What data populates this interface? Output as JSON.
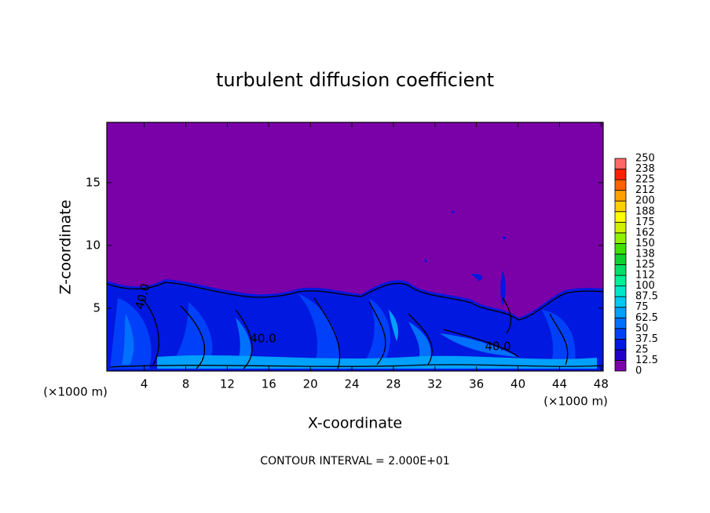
{
  "chart_data": {
    "type": "contour",
    "title": "turbulent diffusion coefficient",
    "x_label": "X-coordinate",
    "y_label": "Z-coordinate",
    "x_unit": "(×1000 m)",
    "xlim": [
      0.4,
      48.2
    ],
    "ylim": [
      0,
      19.8
    ],
    "xticks": [
      4,
      8,
      12,
      16,
      20,
      24,
      28,
      32,
      36,
      40,
      44,
      48
    ],
    "yticks": [
      5,
      10,
      15
    ],
    "contour_labels": [
      {
        "value": 40,
        "label": "40.0"
      },
      {
        "value": 40,
        "label": "40.0"
      },
      {
        "value": 40,
        "label": "40.0"
      }
    ],
    "footer": "CONTOUR INTERVAL = 2.000E+01",
    "colorbar": {
      "levels": [
        0,
        12.5,
        25,
        37.5,
        50,
        62.5,
        75,
        87.5,
        100,
        112,
        125,
        138,
        150,
        162,
        175,
        188,
        200,
        212,
        225,
        238,
        250
      ],
      "colors": [
        "#7a00a8",
        "#2200c8",
        "#0018e0",
        "#0040f8",
        "#0070ff",
        "#00a0ff",
        "#00c8f0",
        "#00e8c8",
        "#00f098",
        "#00e068",
        "#10d030",
        "#40e000",
        "#90f000",
        "#d0f000",
        "#ffff00",
        "#ffd000",
        "#ffa000",
        "#ff6000",
        "#ff2000",
        "#ff6868"
      ]
    }
  }
}
